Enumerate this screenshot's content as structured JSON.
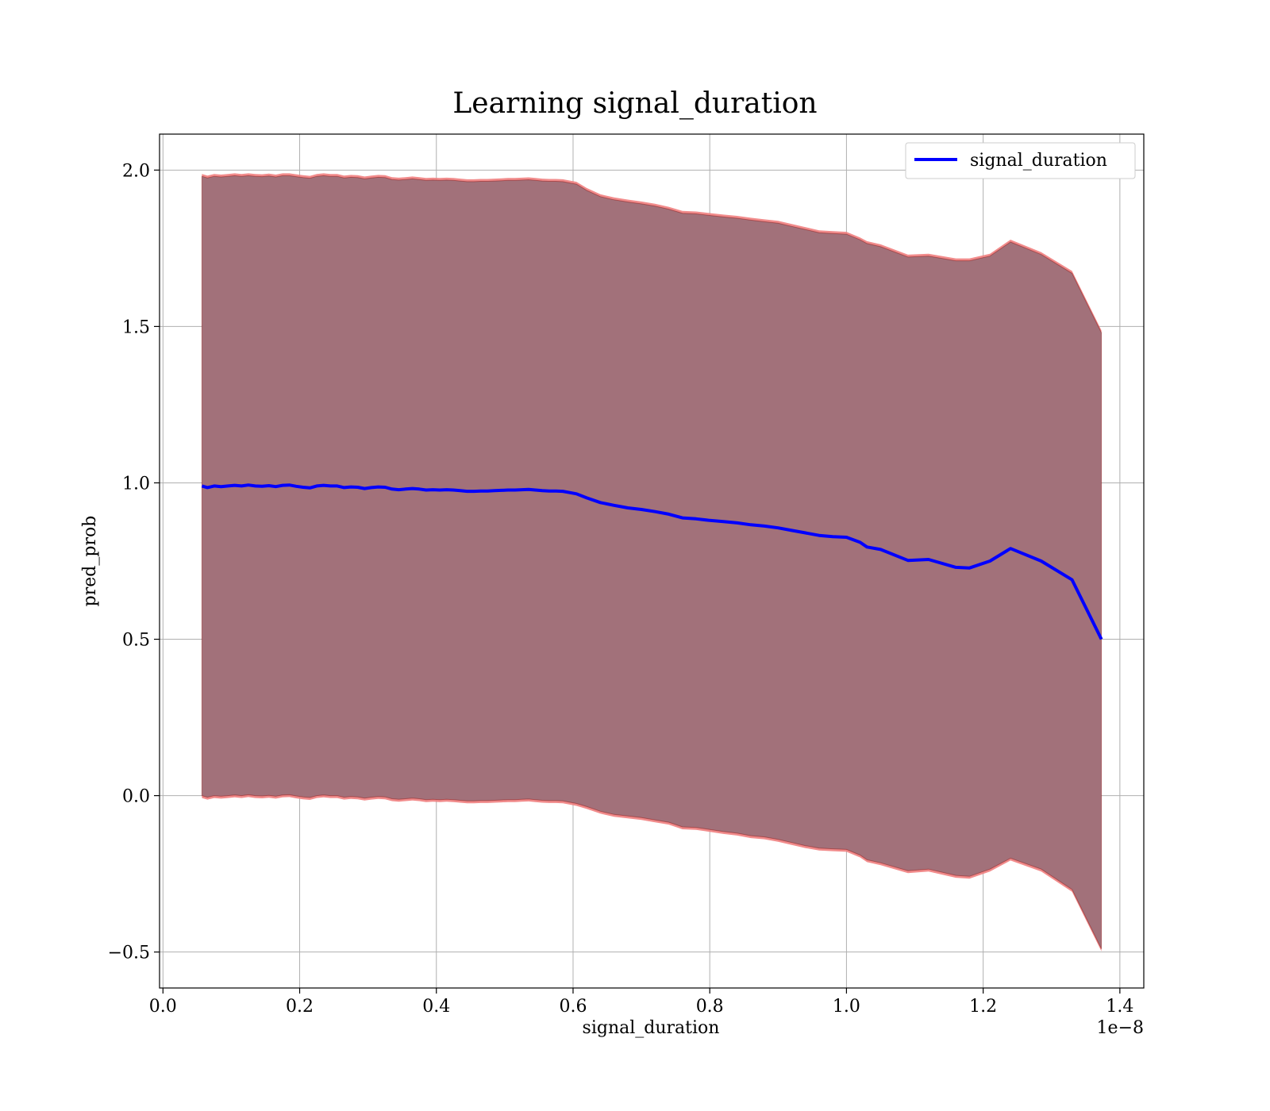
{
  "chart_data": {
    "type": "line",
    "title": "Learning signal_duration",
    "xlabel": "signal_duration",
    "ylabel": "pred_prob",
    "x_offset_text": "1e−8",
    "xlim": [
      -0.005,
      1.435
    ],
    "ylim": [
      -0.615,
      2.115
    ],
    "x_ticks": [
      0.0,
      0.2,
      0.4,
      0.6,
      0.8,
      1.0,
      1.2,
      1.4
    ],
    "x_tick_labels": [
      "0.0",
      "0.2",
      "0.4",
      "0.6",
      "0.8",
      "1.0",
      "1.2",
      "1.4"
    ],
    "y_ticks": [
      -0.5,
      0.0,
      0.5,
      1.0,
      1.5,
      2.0
    ],
    "y_tick_labels": [
      "−0.5",
      "0.0",
      "0.5",
      "1.0",
      "1.5",
      "2.0"
    ],
    "grid": true,
    "legend_position": "top-right",
    "colors": {
      "line": "#0000ff",
      "band_outer": "#f08080",
      "band_inner": "#800000",
      "band_fill": "#a2717a"
    },
    "series": [
      {
        "name": "signal_duration",
        "x": [
          0.057,
          0.065,
          0.075,
          0.085,
          0.095,
          0.105,
          0.115,
          0.125,
          0.135,
          0.145,
          0.155,
          0.165,
          0.175,
          0.185,
          0.195,
          0.205,
          0.215,
          0.225,
          0.235,
          0.245,
          0.255,
          0.265,
          0.275,
          0.285,
          0.295,
          0.305,
          0.315,
          0.325,
          0.335,
          0.345,
          0.355,
          0.365,
          0.375,
          0.385,
          0.395,
          0.405,
          0.415,
          0.425,
          0.435,
          0.445,
          0.455,
          0.465,
          0.475,
          0.485,
          0.495,
          0.505,
          0.515,
          0.525,
          0.535,
          0.545,
          0.555,
          0.565,
          0.575,
          0.585,
          0.595,
          0.605,
          0.62,
          0.64,
          0.66,
          0.68,
          0.7,
          0.72,
          0.74,
          0.76,
          0.78,
          0.8,
          0.82,
          0.84,
          0.86,
          0.88,
          0.9,
          0.92,
          0.94,
          0.96,
          0.98,
          1.0,
          1.02,
          1.03,
          1.05,
          1.09,
          1.12,
          1.16,
          1.18,
          1.21,
          1.24,
          1.285,
          1.33,
          1.373
        ],
        "mean": [
          0.99,
          0.985,
          0.99,
          0.988,
          0.99,
          0.992,
          0.99,
          0.993,
          0.99,
          0.989,
          0.991,
          0.988,
          0.992,
          0.993,
          0.989,
          0.986,
          0.984,
          0.99,
          0.992,
          0.99,
          0.99,
          0.985,
          0.987,
          0.986,
          0.982,
          0.985,
          0.987,
          0.986,
          0.98,
          0.978,
          0.98,
          0.982,
          0.98,
          0.977,
          0.978,
          0.977,
          0.978,
          0.977,
          0.975,
          0.973,
          0.973,
          0.974,
          0.974,
          0.975,
          0.976,
          0.977,
          0.977,
          0.978,
          0.979,
          0.977,
          0.975,
          0.974,
          0.974,
          0.973,
          0.969,
          0.965,
          0.952,
          0.937,
          0.928,
          0.92,
          0.915,
          0.908,
          0.9,
          0.888,
          0.885,
          0.88,
          0.876,
          0.872,
          0.866,
          0.862,
          0.856,
          0.848,
          0.84,
          0.832,
          0.828,
          0.826,
          0.81,
          0.795,
          0.787,
          0.752,
          0.755,
          0.73,
          0.728,
          0.75,
          0.79,
          0.75,
          0.69,
          0.5
        ],
        "upper": [
          1.98,
          1.975,
          1.98,
          1.978,
          1.98,
          1.982,
          1.98,
          1.982,
          1.98,
          1.979,
          1.981,
          1.978,
          1.982,
          1.982,
          1.979,
          1.976,
          1.974,
          1.98,
          1.982,
          1.98,
          1.98,
          1.975,
          1.977,
          1.976,
          1.972,
          1.975,
          1.977,
          1.976,
          1.97,
          1.968,
          1.97,
          1.972,
          1.97,
          1.967,
          1.968,
          1.967,
          1.968,
          1.967,
          1.965,
          1.963,
          1.963,
          1.964,
          1.964,
          1.965,
          1.966,
          1.967,
          1.967,
          1.968,
          1.969,
          1.967,
          1.965,
          1.964,
          1.964,
          1.963,
          1.959,
          1.955,
          1.935,
          1.915,
          1.905,
          1.898,
          1.892,
          1.885,
          1.875,
          1.862,
          1.86,
          1.855,
          1.85,
          1.846,
          1.84,
          1.835,
          1.83,
          1.82,
          1.81,
          1.8,
          1.797,
          1.795,
          1.777,
          1.765,
          1.755,
          1.722,
          1.725,
          1.71,
          1.71,
          1.725,
          1.77,
          1.73,
          1.67,
          1.48
        ],
        "lower": [
          0.0,
          -0.005,
          0.0,
          -0.002,
          0.0,
          0.002,
          0.0,
          0.003,
          0.0,
          -0.001,
          0.001,
          -0.002,
          0.002,
          0.003,
          -0.001,
          -0.004,
          -0.006,
          0.0,
          0.002,
          0.0,
          0.0,
          -0.005,
          -0.003,
          -0.004,
          -0.008,
          -0.005,
          -0.003,
          -0.004,
          -0.01,
          -0.012,
          -0.01,
          -0.008,
          -0.01,
          -0.013,
          -0.012,
          -0.013,
          -0.012,
          -0.013,
          -0.015,
          -0.017,
          -0.017,
          -0.016,
          -0.016,
          -0.015,
          -0.014,
          -0.013,
          -0.013,
          -0.012,
          -0.011,
          -0.013,
          -0.015,
          -0.016,
          -0.016,
          -0.017,
          -0.021,
          -0.025,
          -0.035,
          -0.05,
          -0.06,
          -0.065,
          -0.07,
          -0.078,
          -0.085,
          -0.1,
          -0.102,
          -0.108,
          -0.115,
          -0.12,
          -0.128,
          -0.132,
          -0.14,
          -0.15,
          -0.16,
          -0.168,
          -0.17,
          -0.172,
          -0.19,
          -0.205,
          -0.215,
          -0.24,
          -0.235,
          -0.255,
          -0.258,
          -0.235,
          -0.2,
          -0.235,
          -0.3,
          -0.49
        ]
      }
    ]
  }
}
